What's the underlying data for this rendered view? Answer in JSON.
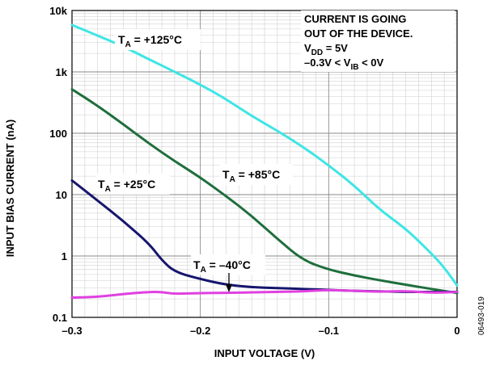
{
  "chart_data": {
    "type": "line",
    "title": "",
    "xlabel": "INPUT VOLTAGE (V)",
    "ylabel": "INPUT BIAS CURRENT (nA)",
    "xlim": [
      -0.3,
      0
    ],
    "ylim": [
      0.1,
      10000
    ],
    "yscale": "log",
    "grid": true,
    "x_ticks": [
      "–0.3",
      "–0.2",
      "–0.1",
      "0"
    ],
    "x_tick_values": [
      -0.3,
      -0.2,
      -0.1,
      0
    ],
    "y_ticks": [
      "0.1",
      "1",
      "10",
      "100",
      "1k",
      "10k"
    ],
    "y_tick_values": [
      0.1,
      1,
      10,
      100,
      1000,
      10000
    ],
    "series": [
      {
        "name": "T_A = +125°C",
        "color": "#3fe5e5",
        "points": [
          [
            -0.3,
            5800
          ],
          [
            -0.28,
            3900
          ],
          [
            -0.26,
            2600
          ],
          [
            -0.24,
            1600
          ],
          [
            -0.22,
            1000
          ],
          [
            -0.2,
            620
          ],
          [
            -0.18,
            360
          ],
          [
            -0.16,
            190
          ],
          [
            -0.14,
            110
          ],
          [
            -0.12,
            60
          ],
          [
            -0.1,
            30
          ],
          [
            -0.08,
            14
          ],
          [
            -0.06,
            5.6
          ],
          [
            -0.04,
            2.8
          ],
          [
            -0.02,
            1.1
          ],
          [
            -0.01,
            0.65
          ],
          [
            0,
            0.33
          ]
        ]
      },
      {
        "name": "T_A = +85°C",
        "color": "#1f6e3c",
        "points": [
          [
            -0.3,
            520
          ],
          [
            -0.28,
            280
          ],
          [
            -0.26,
            140
          ],
          [
            -0.24,
            68
          ],
          [
            -0.22,
            35
          ],
          [
            -0.2,
            19
          ],
          [
            -0.18,
            9.5
          ],
          [
            -0.16,
            4.5
          ],
          [
            -0.14,
            1.9
          ],
          [
            -0.12,
            0.85
          ],
          [
            -0.1,
            0.6
          ],
          [
            -0.08,
            0.48
          ],
          [
            -0.06,
            0.4
          ],
          [
            -0.04,
            0.34
          ],
          [
            -0.02,
            0.29
          ],
          [
            0,
            0.25
          ]
        ]
      },
      {
        "name": "T_A = +25°C",
        "color": "#16166e",
        "points": [
          [
            -0.3,
            17
          ],
          [
            -0.28,
            8
          ],
          [
            -0.26,
            3.7
          ],
          [
            -0.24,
            1.6
          ],
          [
            -0.23,
            0.85
          ],
          [
            -0.22,
            0.55
          ],
          [
            -0.2,
            0.42
          ],
          [
            -0.18,
            0.34
          ],
          [
            -0.16,
            0.31
          ],
          [
            -0.14,
            0.3
          ],
          [
            -0.12,
            0.29
          ],
          [
            -0.1,
            0.28
          ],
          [
            -0.08,
            0.27
          ],
          [
            -0.06,
            0.265
          ],
          [
            -0.04,
            0.26
          ],
          [
            -0.02,
            0.26
          ],
          [
            0,
            0.26
          ]
        ]
      },
      {
        "name": "T_A = –40°C",
        "color": "#e040e0",
        "points": [
          [
            -0.3,
            0.21
          ],
          [
            -0.28,
            0.215
          ],
          [
            -0.26,
            0.24
          ],
          [
            -0.24,
            0.26
          ],
          [
            -0.23,
            0.26
          ],
          [
            -0.22,
            0.24
          ],
          [
            -0.2,
            0.25
          ],
          [
            -0.18,
            0.25
          ],
          [
            -0.16,
            0.255
          ],
          [
            -0.14,
            0.26
          ],
          [
            -0.12,
            0.265
          ],
          [
            -0.1,
            0.28
          ],
          [
            -0.08,
            0.27
          ],
          [
            -0.06,
            0.26
          ],
          [
            -0.04,
            0.27
          ],
          [
            -0.02,
            0.25
          ],
          [
            0,
            0.26
          ]
        ]
      }
    ],
    "labels": {
      "t125": {
        "main": "T",
        "sub": "A",
        "rest": " = +125°C"
      },
      "t85": {
        "main": "T",
        "sub": "A",
        "rest": " = +85°C"
      },
      "t25": {
        "main": "T",
        "sub": "A",
        "rest": " = +25°C"
      },
      "tm40": {
        "main": "T",
        "sub": "A",
        "rest": " = –40°C"
      }
    },
    "annotation": {
      "line1": "CURRENT IS GOING",
      "line2": "OUT OF THE DEVICE.",
      "line3_main": "V",
      "line3_sub": "DD",
      "line3_rest": " = 5V",
      "line4_pre": "–0.3V < V",
      "line4_sub": "IB",
      "line4_rest": " < 0V"
    }
  },
  "figure_id": "06493-019"
}
